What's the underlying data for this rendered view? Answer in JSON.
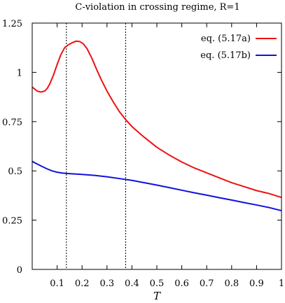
{
  "chart_data": {
    "type": "line",
    "title": "C-violation in crossing regime, R=1",
    "xlabel": "T",
    "ylabel": "",
    "xlim": [
      0,
      1
    ],
    "ylim": [
      0,
      1.25
    ],
    "x_ticks": [
      {
        "value": 0.1,
        "label": "0.1"
      },
      {
        "value": 0.2,
        "label": "0.2"
      },
      {
        "value": 0.3,
        "label": "0.3"
      },
      {
        "value": 0.4,
        "label": "0.4"
      },
      {
        "value": 0.5,
        "label": "0.5"
      },
      {
        "value": 0.6,
        "label": "0.6"
      },
      {
        "value": 0.7,
        "label": "0.7"
      },
      {
        "value": 0.8,
        "label": "0.8"
      },
      {
        "value": 0.9,
        "label": "0.9"
      },
      {
        "value": 1.0,
        "label": "1"
      }
    ],
    "y_ticks": [
      {
        "value": 0,
        "label": "0"
      },
      {
        "value": 0.25,
        "label": "0.25"
      },
      {
        "value": 0.5,
        "label": "0.5"
      },
      {
        "value": 0.75,
        "label": "0.75"
      },
      {
        "value": 1.0,
        "label": "1"
      },
      {
        "value": 1.25,
        "label": "1.25"
      }
    ],
    "grid": false,
    "legend_position": "top-right",
    "vlines": [
      0.137,
      0.375
    ],
    "series": [
      {
        "name": "eq. (5.17a)",
        "color": "#ee1111",
        "x": [
          0.0,
          0.01,
          0.02,
          0.035,
          0.05,
          0.06,
          0.07,
          0.085,
          0.1,
          0.115,
          0.13,
          0.145,
          0.16,
          0.175,
          0.19,
          0.205,
          0.22,
          0.24,
          0.26,
          0.28,
          0.3,
          0.325,
          0.35,
          0.375,
          0.4,
          0.45,
          0.5,
          0.55,
          0.6,
          0.65,
          0.7,
          0.75,
          0.8,
          0.85,
          0.9,
          0.95,
          1.0
        ],
        "y": [
          0.925,
          0.915,
          0.905,
          0.9,
          0.905,
          0.918,
          0.94,
          0.985,
          1.04,
          1.09,
          1.125,
          1.14,
          1.15,
          1.158,
          1.157,
          1.145,
          1.12,
          1.07,
          1.01,
          0.955,
          0.905,
          0.85,
          0.8,
          0.76,
          0.725,
          0.67,
          0.62,
          0.58,
          0.545,
          0.515,
          0.49,
          0.465,
          0.44,
          0.42,
          0.4,
          0.385,
          0.365
        ]
      },
      {
        "name": "eq. (5.17b)",
        "color": "#1111dd",
        "x": [
          0.0,
          0.02,
          0.04,
          0.06,
          0.08,
          0.1,
          0.12,
          0.137,
          0.16,
          0.2,
          0.25,
          0.3,
          0.35,
          0.4,
          0.45,
          0.5,
          0.55,
          0.6,
          0.65,
          0.7,
          0.75,
          0.8,
          0.85,
          0.9,
          0.95,
          1.0
        ],
        "y": [
          0.548,
          0.535,
          0.522,
          0.51,
          0.5,
          0.493,
          0.489,
          0.487,
          0.485,
          0.482,
          0.477,
          0.47,
          0.461,
          0.452,
          0.44,
          0.428,
          0.415,
          0.402,
          0.389,
          0.377,
          0.364,
          0.352,
          0.339,
          0.327,
          0.314,
          0.298
        ]
      }
    ]
  }
}
